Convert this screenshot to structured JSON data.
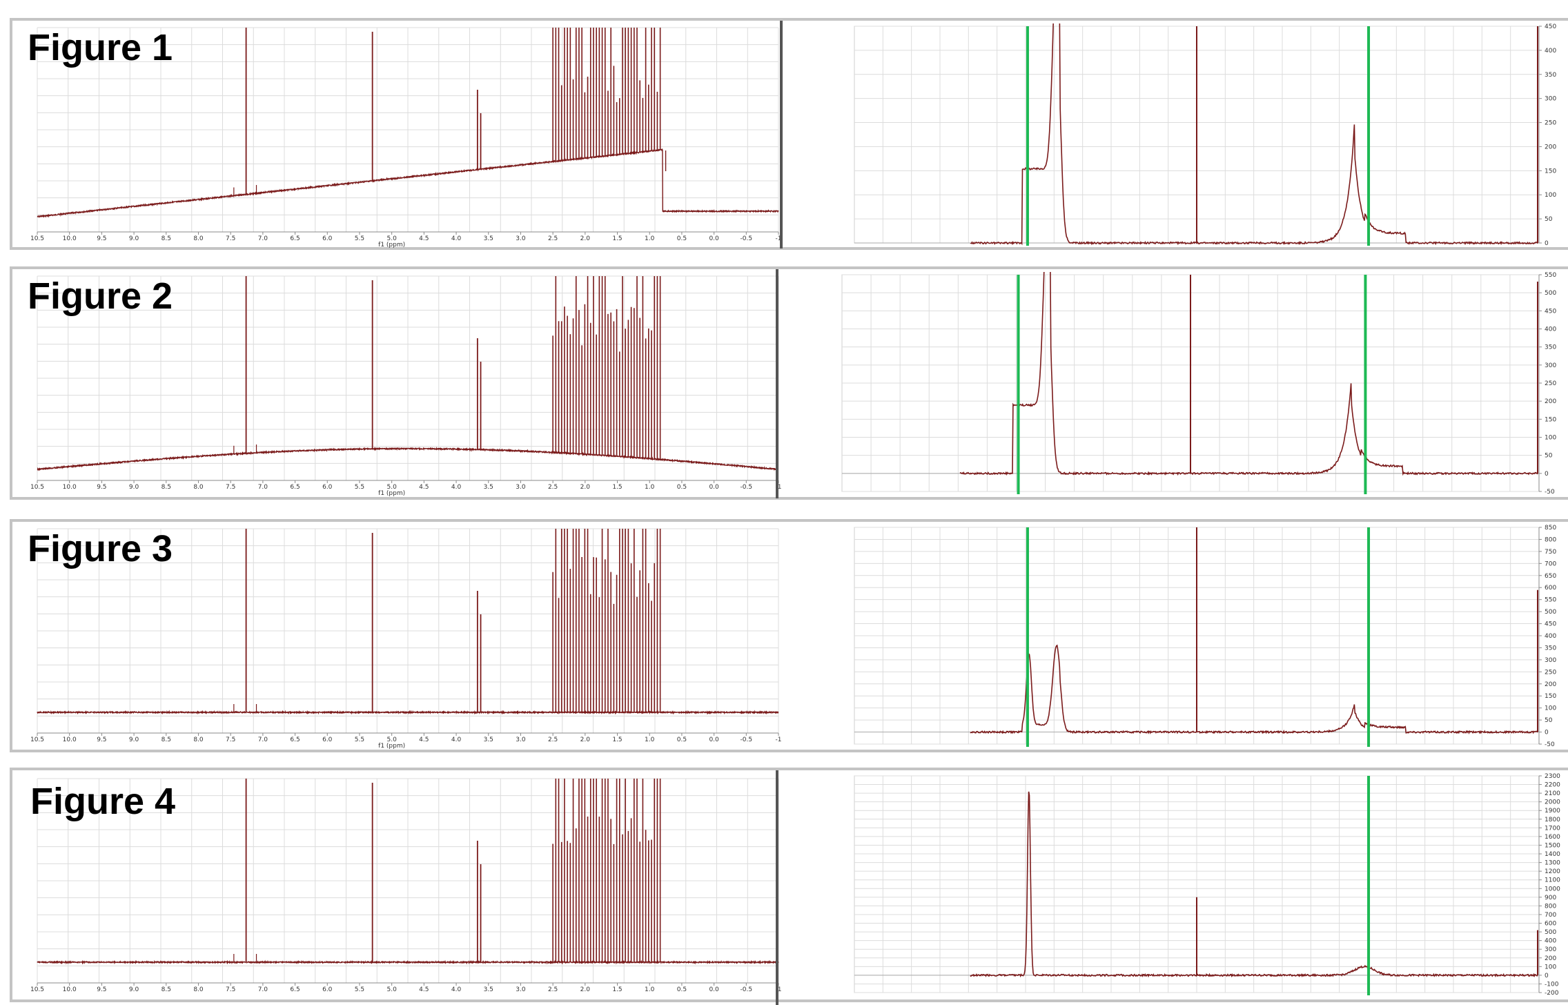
{
  "figures": [
    {
      "title": "Figure 1",
      "spectrum": {
        "xlabel": "f1 (ppm)",
        "x_ticks": [
          "10.5",
          "10.0",
          "9.5",
          "9.0",
          "8.5",
          "8.0",
          "7.5",
          "7.0",
          "6.5",
          "6.0",
          "5.5",
          "5.0",
          "4.5",
          "4.0",
          "3.5",
          "3.0",
          "2.5",
          "2.0",
          "1.5",
          "1.0",
          "0.5",
          "0.0",
          "-0.5",
          "-1"
        ],
        "baseline_style": "rising"
      },
      "zoom": {
        "y_ticks": [
          "450",
          "400",
          "350",
          "300",
          "250",
          "200",
          "150",
          "100",
          "50",
          "0"
        ]
      }
    },
    {
      "title": "Figure 2",
      "spectrum": {
        "xlabel": "f1 (ppm)",
        "x_ticks": [
          "10.5",
          "10.0",
          "9.5",
          "9.0",
          "8.5",
          "8.0",
          "7.5",
          "7.0",
          "6.5",
          "6.0",
          "5.5",
          "5.0",
          "4.5",
          "4.0",
          "3.5",
          "3.0",
          "2.5",
          "2.0",
          "1.5",
          "1.0",
          "0.5",
          "0.0",
          "-0.5",
          "-1"
        ],
        "baseline_style": "arch"
      },
      "zoom": {
        "y_ticks": [
          "550",
          "500",
          "450",
          "400",
          "350",
          "300",
          "250",
          "200",
          "150",
          "100",
          "50",
          "0",
          "-50"
        ]
      }
    },
    {
      "title": "Figure 3",
      "spectrum": {
        "xlabel": "f1 (ppm)",
        "x_ticks": [
          "10.5",
          "10.0",
          "9.5",
          "9.0",
          "8.5",
          "8.0",
          "7.5",
          "7.0",
          "6.5",
          "6.0",
          "5.5",
          "5.0",
          "4.5",
          "4.0",
          "3.5",
          "3.0",
          "2.5",
          "2.0",
          "1.5",
          "1.0",
          "0.5",
          "0.0",
          "-0.5",
          "-1"
        ],
        "baseline_style": "flat"
      },
      "zoom": {
        "y_ticks": [
          "850",
          "800",
          "750",
          "700",
          "650",
          "600",
          "550",
          "500",
          "450",
          "400",
          "350",
          "300",
          "250",
          "200",
          "150",
          "100",
          "50",
          "0",
          "-50"
        ]
      }
    },
    {
      "title": "Figure 4",
      "spectrum": {
        "xlabel": "",
        "x_ticks": [
          "10.5",
          "10.0",
          "9.5",
          "9.0",
          "8.5",
          "8.0",
          "7.5",
          "7.0",
          "6.5",
          "6.0",
          "5.5",
          "5.0",
          "4.5",
          "4.0",
          "3.5",
          "3.0",
          "2.5",
          "2.0",
          "1.5",
          "1.0",
          "0.5",
          "0.0",
          "-0.5",
          "-1"
        ],
        "baseline_style": "flat"
      },
      "zoom": {
        "y_ticks": [
          "2300",
          "2200",
          "2100",
          "2000",
          "1900",
          "1800",
          "1700",
          "1600",
          "1500",
          "1400",
          "1300",
          "1200",
          "1100",
          "1000",
          "900",
          "800",
          "700",
          "600",
          "500",
          "400",
          "300",
          "200",
          "100",
          "0",
          "-100",
          "-200"
        ]
      }
    }
  ],
  "colors": {
    "trace": "#7a1a1a",
    "marker": "#1db954",
    "grid": "#dcdcdc",
    "border": "#c4c4c4"
  },
  "chart_data": [
    {
      "type": "line",
      "title": "Figure 1",
      "xlabel": "f1 (ppm)",
      "xlim": [
        10.5,
        -1
      ],
      "peaks_ppm": [
        7.26,
        5.3,
        3.67,
        2.4,
        2.3,
        2.1,
        1.9,
        1.6,
        1.4,
        1.2,
        1.0,
        0.9
      ],
      "zoom_ylim": [
        0,
        450
      ],
      "zoom_peaks": [
        {
          "label": "left broad peak",
          "height": 440
        },
        {
          "label": "right broad peak",
          "height": 260
        }
      ]
    },
    {
      "type": "line",
      "title": "Figure 2",
      "xlabel": "f1 (ppm)",
      "xlim": [
        10.5,
        -1
      ],
      "peaks_ppm": [
        7.26,
        5.3,
        3.67,
        2.4,
        2.3,
        2.1,
        1.9,
        1.6,
        1.4,
        1.2,
        1.0,
        0.9
      ],
      "zoom_ylim": [
        -50,
        550
      ],
      "zoom_peaks": [
        {
          "label": "left broad peak",
          "height": 540
        },
        {
          "label": "right broad peak",
          "height": 270
        }
      ]
    },
    {
      "type": "line",
      "title": "Figure 3",
      "xlabel": "f1 (ppm)",
      "xlim": [
        10.5,
        -1
      ],
      "peaks_ppm": [
        7.26,
        5.3,
        3.67,
        2.4,
        2.3,
        2.1,
        1.9,
        1.6,
        1.4,
        1.2,
        1.0,
        0.9
      ],
      "zoom_ylim": [
        -50,
        850
      ],
      "zoom_peaks": [
        {
          "label": "left peak",
          "height": 330
        },
        {
          "label": "right broad peak",
          "height": 120
        }
      ]
    },
    {
      "type": "line",
      "title": "Figure 4",
      "xlabel": "",
      "xlim": [
        10.5,
        -1
      ],
      "peaks_ppm": [
        7.26,
        5.3,
        3.67,
        2.4,
        2.3,
        2.1,
        1.9,
        1.6,
        1.4,
        1.2,
        1.0,
        0.9
      ],
      "zoom_ylim": [
        -200,
        2300
      ],
      "zoom_peaks": [
        {
          "label": "left sharp peak",
          "height": 2150
        },
        {
          "label": "center peak",
          "height": 900
        },
        {
          "label": "right broad peak",
          "height": 100
        }
      ]
    }
  ]
}
